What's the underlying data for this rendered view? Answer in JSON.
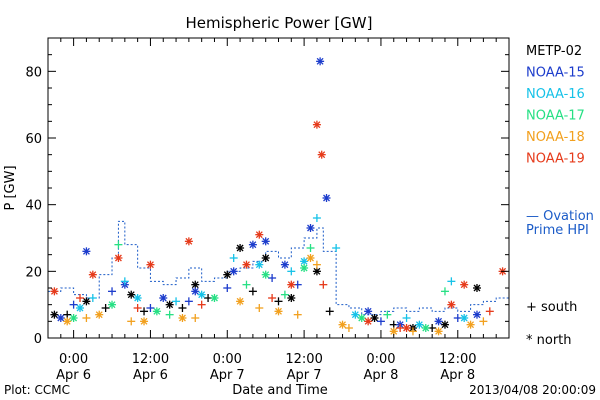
{
  "chart_data": {
    "type": "scatter",
    "title": "Hemispheric Power [GW]",
    "xlabel": "Date and Time",
    "ylabel": "P [GW]",
    "xlim": [
      "2013-04-05 20:00",
      "2013-04-08 20:00"
    ],
    "ylim": [
      0,
      90
    ],
    "yticks": [
      0,
      20,
      40,
      60,
      80
    ],
    "xticks": [
      {
        "x": "2013-04-06 00:00",
        "line1": "0:00",
        "line2": "Apr 6"
      },
      {
        "x": "2013-04-06 12:00",
        "line1": "12:00",
        "line2": "Apr 6"
      },
      {
        "x": "2013-04-07 00:00",
        "line1": "0:00",
        "line2": "Apr 7"
      },
      {
        "x": "2013-04-07 12:00",
        "line1": "12:00",
        "line2": "Apr 7"
      },
      {
        "x": "2013-04-08 00:00",
        "line1": "0:00",
        "line2": "Apr 8"
      },
      {
        "x": "2013-04-08 12:00",
        "line1": "12:00",
        "line2": "Apr 8"
      }
    ],
    "legend": {
      "placement": "right",
      "satellites": [
        {
          "name": "METP-02",
          "color": "#000000"
        },
        {
          "name": "NOAA-15",
          "color": "#1c3ccc"
        },
        {
          "name": "NOAA-16",
          "color": "#16c2e8"
        },
        {
          "name": "NOAA-17",
          "color": "#26e084"
        },
        {
          "name": "NOAA-18",
          "color": "#f2a01e"
        },
        {
          "name": "NOAA-19",
          "color": "#e63a1a"
        }
      ],
      "ovation_line1": "— Ovation",
      "ovation_line2": "Prime HPI",
      "ovation_color": "#1c5cc8",
      "south_label": "+ south",
      "north_label": "* north"
    },
    "series": [
      {
        "name": "METP-02",
        "color": "#000000",
        "points": [
          [
            "2013-04-05 21:00",
            7,
            "n"
          ],
          [
            "2013-04-06 02:00",
            11,
            "n"
          ],
          [
            "2013-04-06 09:00",
            13,
            "n"
          ],
          [
            "2013-04-06 15:00",
            10,
            "n"
          ],
          [
            "2013-04-06 19:00",
            16,
            "n"
          ],
          [
            "2013-04-07 00:00",
            19,
            "n"
          ],
          [
            "2013-04-07 02:00",
            27,
            "n"
          ],
          [
            "2013-04-07 06:00",
            24,
            "n"
          ],
          [
            "2013-04-07 10:00",
            12,
            "n"
          ],
          [
            "2013-04-07 14:00",
            20,
            "n"
          ],
          [
            "2013-04-07 23:00",
            6,
            "n"
          ],
          [
            "2013-04-08 05:00",
            3,
            "n"
          ],
          [
            "2013-04-08 10:00",
            4,
            "n"
          ],
          [
            "2013-04-08 15:00",
            15,
            "n"
          ],
          [
            "2013-04-05 23:00",
            7,
            "s"
          ],
          [
            "2013-04-06 05:00",
            9,
            "s"
          ],
          [
            "2013-04-06 11:00",
            8,
            "s"
          ],
          [
            "2013-04-06 17:00",
            9,
            "s"
          ],
          [
            "2013-04-06 21:00",
            12,
            "s"
          ],
          [
            "2013-04-07 04:00",
            14,
            "s"
          ],
          [
            "2013-04-07 08:00",
            11,
            "s"
          ],
          [
            "2013-04-07 16:00",
            8,
            "s"
          ],
          [
            "2013-04-08 02:00",
            4,
            "s"
          ],
          [
            "2013-04-08 08:00",
            3,
            "s"
          ]
        ]
      },
      {
        "name": "NOAA-15",
        "color": "#1c3ccc",
        "points": [
          [
            "2013-04-05 22:00",
            6,
            "n"
          ],
          [
            "2013-04-06 02:00",
            26,
            "n"
          ],
          [
            "2013-04-06 08:00",
            16,
            "n"
          ],
          [
            "2013-04-06 14:00",
            12,
            "n"
          ],
          [
            "2013-04-06 19:00",
            14,
            "n"
          ],
          [
            "2013-04-07 01:00",
            20,
            "n"
          ],
          [
            "2013-04-07 04:00",
            28,
            "n"
          ],
          [
            "2013-04-07 06:00",
            29,
            "n"
          ],
          [
            "2013-04-07 09:00",
            22,
            "n"
          ],
          [
            "2013-04-07 13:00",
            33,
            "n"
          ],
          [
            "2013-04-07 14:30",
            83,
            "n"
          ],
          [
            "2013-04-07 15:30",
            42,
            "n"
          ],
          [
            "2013-04-07 22:00",
            8,
            "n"
          ],
          [
            "2013-04-08 03:00",
            4,
            "n"
          ],
          [
            "2013-04-08 09:00",
            5,
            "n"
          ],
          [
            "2013-04-08 15:00",
            7,
            "n"
          ],
          [
            "2013-04-06 00:00",
            10,
            "s"
          ],
          [
            "2013-04-06 06:00",
            14,
            "s"
          ],
          [
            "2013-04-06 12:00",
            9,
            "s"
          ],
          [
            "2013-04-06 18:00",
            11,
            "s"
          ],
          [
            "2013-04-07 00:00",
            15,
            "s"
          ],
          [
            "2013-04-07 07:00",
            18,
            "s"
          ],
          [
            "2013-04-07 11:00",
            16,
            "s"
          ],
          [
            "2013-04-08 00:00",
            5,
            "s"
          ],
          [
            "2013-04-08 12:00",
            6,
            "s"
          ]
        ]
      },
      {
        "name": "NOAA-16",
        "color": "#16c2e8",
        "points": [
          [
            "2013-04-06 01:00",
            9,
            "n"
          ],
          [
            "2013-04-06 10:00",
            12,
            "n"
          ],
          [
            "2013-04-06 20:00",
            13,
            "n"
          ],
          [
            "2013-04-07 05:00",
            22,
            "n"
          ],
          [
            "2013-04-07 12:00",
            23,
            "n"
          ],
          [
            "2013-04-07 20:00",
            7,
            "n"
          ],
          [
            "2013-04-08 06:00",
            4,
            "n"
          ],
          [
            "2013-04-08 13:00",
            6,
            "n"
          ],
          [
            "2013-04-06 03:00",
            12,
            "s"
          ],
          [
            "2013-04-06 08:00",
            17,
            "s"
          ],
          [
            "2013-04-06 16:00",
            11,
            "s"
          ],
          [
            "2013-04-07 01:00",
            24,
            "s"
          ],
          [
            "2013-04-07 10:00",
            20,
            "s"
          ],
          [
            "2013-04-07 14:00",
            36,
            "s"
          ],
          [
            "2013-04-07 17:00",
            27,
            "s"
          ],
          [
            "2013-04-08 04:00",
            6,
            "s"
          ],
          [
            "2013-04-08 11:00",
            17,
            "s"
          ]
        ]
      },
      {
        "name": "NOAA-17",
        "color": "#26e084",
        "points": [
          [
            "2013-04-06 00:00",
            6,
            "n"
          ],
          [
            "2013-04-06 06:00",
            10,
            "n"
          ],
          [
            "2013-04-06 13:00",
            8,
            "n"
          ],
          [
            "2013-04-06 22:00",
            12,
            "n"
          ],
          [
            "2013-04-07 06:00",
            19,
            "n"
          ],
          [
            "2013-04-07 12:00",
            21,
            "n"
          ],
          [
            "2013-04-07 21:00",
            6,
            "n"
          ],
          [
            "2013-04-08 07:00",
            3,
            "n"
          ],
          [
            "2013-04-06 07:00",
            28,
            "s"
          ],
          [
            "2013-04-06 15:00",
            7,
            "s"
          ],
          [
            "2013-04-07 03:00",
            16,
            "s"
          ],
          [
            "2013-04-07 09:00",
            13,
            "s"
          ],
          [
            "2013-04-07 13:00",
            27,
            "s"
          ],
          [
            "2013-04-08 01:00",
            7,
            "s"
          ],
          [
            "2013-04-08 10:00",
            14,
            "s"
          ]
        ]
      },
      {
        "name": "NOAA-18",
        "color": "#f2a01e",
        "points": [
          [
            "2013-04-05 23:00",
            5,
            "n"
          ],
          [
            "2013-04-06 04:00",
            7,
            "n"
          ],
          [
            "2013-04-06 11:00",
            5,
            "n"
          ],
          [
            "2013-04-06 17:00",
            6,
            "n"
          ],
          [
            "2013-04-07 02:00",
            11,
            "n"
          ],
          [
            "2013-04-07 08:00",
            8,
            "n"
          ],
          [
            "2013-04-07 13:00",
            24,
            "n"
          ],
          [
            "2013-04-07 18:00",
            4,
            "n"
          ],
          [
            "2013-04-08 02:00",
            2,
            "n"
          ],
          [
            "2013-04-08 09:00",
            2,
            "n"
          ],
          [
            "2013-04-08 14:00",
            4,
            "n"
          ],
          [
            "2013-04-06 02:00",
            6,
            "s"
          ],
          [
            "2013-04-06 09:00",
            5,
            "s"
          ],
          [
            "2013-04-06 19:00",
            6,
            "s"
          ],
          [
            "2013-04-07 05:00",
            9,
            "s"
          ],
          [
            "2013-04-07 11:00",
            7,
            "s"
          ],
          [
            "2013-04-07 14:00",
            22,
            "s"
          ],
          [
            "2013-04-07 19:00",
            3,
            "s"
          ],
          [
            "2013-04-08 05:00",
            2,
            "s"
          ],
          [
            "2013-04-08 16:00",
            5,
            "s"
          ]
        ]
      },
      {
        "name": "NOAA-19",
        "color": "#e63a1a",
        "points": [
          [
            "2013-04-05 21:00",
            14,
            "n"
          ],
          [
            "2013-04-06 03:00",
            19,
            "n"
          ],
          [
            "2013-04-06 07:00",
            24,
            "n"
          ],
          [
            "2013-04-06 12:00",
            22,
            "n"
          ],
          [
            "2013-04-06 18:00",
            29,
            "n"
          ],
          [
            "2013-04-07 03:00",
            22,
            "n"
          ],
          [
            "2013-04-07 05:00",
            31,
            "n"
          ],
          [
            "2013-04-07 10:00",
            16,
            "n"
          ],
          [
            "2013-04-07 14:00",
            64,
            "n"
          ],
          [
            "2013-04-07 14:45",
            55,
            "n"
          ],
          [
            "2013-04-07 22:00",
            5,
            "n"
          ],
          [
            "2013-04-08 04:00",
            3,
            "n"
          ],
          [
            "2013-04-08 11:00",
            10,
            "n"
          ],
          [
            "2013-04-08 13:00",
            16,
            "n"
          ],
          [
            "2013-04-08 19:00",
            20,
            "n"
          ],
          [
            "2013-04-06 01:00",
            12,
            "s"
          ],
          [
            "2013-04-06 10:00",
            9,
            "s"
          ],
          [
            "2013-04-06 20:00",
            10,
            "s"
          ],
          [
            "2013-04-07 07:00",
            12,
            "s"
          ],
          [
            "2013-04-07 15:00",
            16,
            "s"
          ],
          [
            "2013-04-08 03:00",
            3,
            "s"
          ],
          [
            "2013-04-08 17:00",
            8,
            "s"
          ]
        ]
      }
    ],
    "ovation_hpi": {
      "name": "Ovation Prime HPI",
      "points": [
        [
          "2013-04-05 20:00",
          14
        ],
        [
          "2013-04-05 22:00",
          15
        ],
        [
          "2013-04-06 00:00",
          13
        ],
        [
          "2013-04-06 02:00",
          12
        ],
        [
          "2013-04-06 04:00",
          19
        ],
        [
          "2013-04-06 06:00",
          24
        ],
        [
          "2013-04-06 07:00",
          35
        ],
        [
          "2013-04-06 08:00",
          28
        ],
        [
          "2013-04-06 10:00",
          21
        ],
        [
          "2013-04-06 12:00",
          17
        ],
        [
          "2013-04-06 14:00",
          16
        ],
        [
          "2013-04-06 16:00",
          18
        ],
        [
          "2013-04-06 18:00",
          21
        ],
        [
          "2013-04-06 20:00",
          17
        ],
        [
          "2013-04-06 22:00",
          18
        ],
        [
          "2013-04-07 00:00",
          20
        ],
        [
          "2013-04-07 02:00",
          21
        ],
        [
          "2013-04-07 04:00",
          23
        ],
        [
          "2013-04-07 06:00",
          26
        ],
        [
          "2013-04-07 08:00",
          24
        ],
        [
          "2013-04-07 10:00",
          27
        ],
        [
          "2013-04-07 12:00",
          30
        ],
        [
          "2013-04-07 14:00",
          33
        ],
        [
          "2013-04-07 15:00",
          26
        ],
        [
          "2013-04-07 17:00",
          10
        ],
        [
          "2013-04-07 19:00",
          9
        ],
        [
          "2013-04-07 21:00",
          7
        ],
        [
          "2013-04-08 00:00",
          8
        ],
        [
          "2013-04-08 02:00",
          9
        ],
        [
          "2013-04-08 04:00",
          8
        ],
        [
          "2013-04-08 06:00",
          9
        ],
        [
          "2013-04-08 08:00",
          8
        ],
        [
          "2013-04-08 10:00",
          9
        ],
        [
          "2013-04-08 12:00",
          8
        ],
        [
          "2013-04-08 14:00",
          10
        ],
        [
          "2013-04-08 16:00",
          11
        ],
        [
          "2013-04-08 18:00",
          12
        ],
        [
          "2013-04-08 20:00",
          11
        ]
      ]
    }
  },
  "footer": {
    "left": "Plot: CCMC",
    "right": "2013/04/08 20:00:09"
  }
}
